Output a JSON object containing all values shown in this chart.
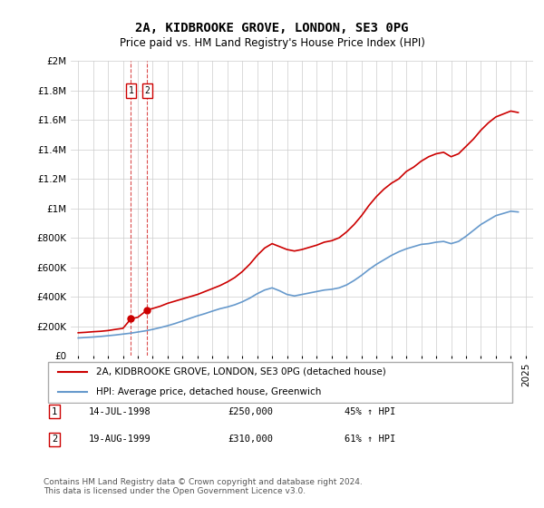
{
  "title": "2A, KIDBROOKE GROVE, LONDON, SE3 0PG",
  "subtitle": "Price paid vs. HM Land Registry's House Price Index (HPI)",
  "legend_line1": "2A, KIDBROOKE GROVE, LONDON, SE3 0PG (detached house)",
  "legend_line2": "HPI: Average price, detached house, Greenwich",
  "transactions": [
    {
      "label": "1",
      "date_num": 1998.54,
      "price": 250000
    },
    {
      "label": "2",
      "date_num": 1999.63,
      "price": 310000
    }
  ],
  "table_rows": [
    {
      "num": "1",
      "date": "14-JUL-1998",
      "price": "£250,000",
      "hpi": "45% ↑ HPI"
    },
    {
      "num": "2",
      "date": "19-AUG-1999",
      "price": "£310,000",
      "hpi": "61% ↑ HPI"
    }
  ],
  "footer": "Contains HM Land Registry data © Crown copyright and database right 2024.\nThis data is licensed under the Open Government Licence v3.0.",
  "red_color": "#cc0000",
  "blue_color": "#6699cc",
  "ylim": [
    0,
    2000000
  ],
  "xlim": [
    1994.5,
    2025.5
  ],
  "yticks": [
    0,
    200000,
    400000,
    600000,
    800000,
    1000000,
    1200000,
    1400000,
    1600000,
    1800000,
    2000000
  ],
  "ytick_labels": [
    "£0",
    "£200K",
    "£400K",
    "£600K",
    "£800K",
    "£1M",
    "£1.2M",
    "£1.4M",
    "£1.6M",
    "£1.8M",
    "£2M"
  ],
  "xticks": [
    1995,
    1996,
    1997,
    1998,
    1999,
    2000,
    2001,
    2002,
    2003,
    2004,
    2005,
    2006,
    2007,
    2008,
    2009,
    2010,
    2011,
    2012,
    2013,
    2014,
    2015,
    2016,
    2017,
    2018,
    2019,
    2020,
    2021,
    2022,
    2023,
    2024,
    2025
  ],
  "red_x": [
    1995.0,
    1995.5,
    1996.0,
    1996.5,
    1997.0,
    1997.5,
    1998.0,
    1998.54,
    1999.0,
    1999.63,
    2000.0,
    2000.5,
    2001.0,
    2001.5,
    2002.0,
    2002.5,
    2003.0,
    2003.5,
    2004.0,
    2004.5,
    2005.0,
    2005.5,
    2006.0,
    2006.5,
    2007.0,
    2007.5,
    2008.0,
    2008.5,
    2009.0,
    2009.5,
    2010.0,
    2010.5,
    2011.0,
    2011.5,
    2012.0,
    2012.5,
    2013.0,
    2013.5,
    2014.0,
    2014.5,
    2015.0,
    2015.5,
    2016.0,
    2016.5,
    2017.0,
    2017.5,
    2018.0,
    2018.5,
    2019.0,
    2019.5,
    2020.0,
    2020.5,
    2021.0,
    2021.5,
    2022.0,
    2022.5,
    2023.0,
    2023.5,
    2024.0,
    2024.5
  ],
  "red_y": [
    155000,
    158000,
    162000,
    165000,
    170000,
    178000,
    185000,
    250000,
    260000,
    310000,
    320000,
    335000,
    355000,
    370000,
    385000,
    400000,
    415000,
    435000,
    455000,
    475000,
    500000,
    530000,
    570000,
    620000,
    680000,
    730000,
    760000,
    740000,
    720000,
    710000,
    720000,
    735000,
    750000,
    770000,
    780000,
    800000,
    840000,
    890000,
    950000,
    1020000,
    1080000,
    1130000,
    1170000,
    1200000,
    1250000,
    1280000,
    1320000,
    1350000,
    1370000,
    1380000,
    1350000,
    1370000,
    1420000,
    1470000,
    1530000,
    1580000,
    1620000,
    1640000,
    1660000,
    1650000
  ],
  "blue_x": [
    1995.0,
    1995.5,
    1996.0,
    1996.5,
    1997.0,
    1997.5,
    1998.0,
    1998.5,
    1999.0,
    1999.5,
    2000.0,
    2000.5,
    2001.0,
    2001.5,
    2002.0,
    2002.5,
    2003.0,
    2003.5,
    2004.0,
    2004.5,
    2005.0,
    2005.5,
    2006.0,
    2006.5,
    2007.0,
    2007.5,
    2008.0,
    2008.5,
    2009.0,
    2009.5,
    2010.0,
    2010.5,
    2011.0,
    2011.5,
    2012.0,
    2012.5,
    2013.0,
    2013.5,
    2014.0,
    2014.5,
    2015.0,
    2015.5,
    2016.0,
    2016.5,
    2017.0,
    2017.5,
    2018.0,
    2018.5,
    2019.0,
    2019.5,
    2020.0,
    2020.5,
    2021.0,
    2021.5,
    2022.0,
    2022.5,
    2023.0,
    2023.5,
    2024.0,
    2024.5
  ],
  "blue_y": [
    120000,
    123000,
    126000,
    130000,
    135000,
    140000,
    146000,
    152000,
    160000,
    168000,
    178000,
    190000,
    203000,
    218000,
    235000,
    253000,
    270000,
    285000,
    302000,
    318000,
    330000,
    345000,
    365000,
    390000,
    420000,
    445000,
    460000,
    440000,
    415000,
    405000,
    415000,
    425000,
    435000,
    445000,
    450000,
    460000,
    480000,
    510000,
    545000,
    585000,
    620000,
    650000,
    680000,
    705000,
    725000,
    740000,
    755000,
    760000,
    770000,
    775000,
    760000,
    775000,
    810000,
    850000,
    890000,
    920000,
    950000,
    965000,
    980000,
    975000
  ]
}
